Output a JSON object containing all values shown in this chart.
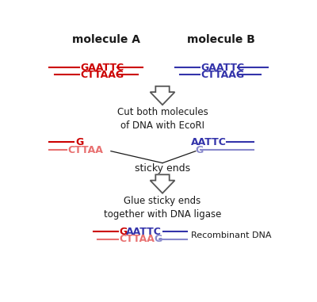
{
  "bg_color": "#ffffff",
  "red": "#cc0000",
  "light_red": "#e87070",
  "blue": "#3333aa",
  "light_blue": "#8888cc",
  "dark": "#1a1a1a",
  "title_mol_A": "molecule A",
  "title_mol_B": "molecule B",
  "label1": "Cut both molecules\nof DNA with EcoRI",
  "label2": "sticky ends",
  "label3": "Glue sticky ends\ntogether with DNA ligase",
  "label_recomb": "Recombinant DNA",
  "figw": 4.0,
  "figh": 3.81,
  "dpi": 100
}
